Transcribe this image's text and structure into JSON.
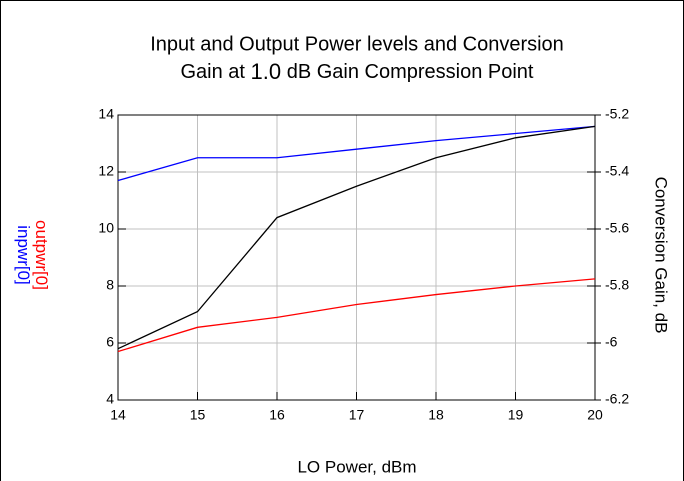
{
  "chart_data": {
    "type": "line",
    "title": "Input and Output Power levels and Conversion",
    "subtitle_parts": [
      "Gain at",
      "1.0",
      "dB Gain Compression Point"
    ],
    "x_label": "LO Power, dBm",
    "y_label_parts": [
      "inpwr[0]",
      "outpwr[0]"
    ],
    "y2_label": "Conversion Gain, dB",
    "x": [
      14,
      15,
      16,
      17,
      18,
      19,
      20
    ],
    "series": [
      {
        "name": "inpwr[0]",
        "color": "#0000ff",
        "values": [
          11.7,
          12.5,
          12.5,
          12.8,
          13.1,
          13.35,
          13.6
        ]
      },
      {
        "name": "outpwr[0]",
        "color": "#ff0000",
        "values": [
          5.7,
          6.55,
          6.9,
          7.35,
          7.7,
          8.0,
          8.25
        ]
      },
      {
        "name": "Conversion Gain, dB",
        "color": "#000000",
        "axis": "y2",
        "values": [
          -6.02,
          -5.89,
          -5.56,
          -5.45,
          -5.35,
          -5.28,
          -5.24
        ]
      }
    ],
    "xlim": [
      14,
      20
    ],
    "xticks": [
      14,
      15,
      16,
      17,
      18,
      19,
      20
    ],
    "ylim": [
      4,
      14
    ],
    "yticks": [
      4,
      6,
      8,
      10,
      12,
      14
    ],
    "y2lim": [
      -6.2,
      -5.2
    ],
    "y2ticks": [
      -6.2,
      -6.0,
      -5.8,
      -5.6,
      -5.4,
      -5.2
    ],
    "grid": true
  }
}
